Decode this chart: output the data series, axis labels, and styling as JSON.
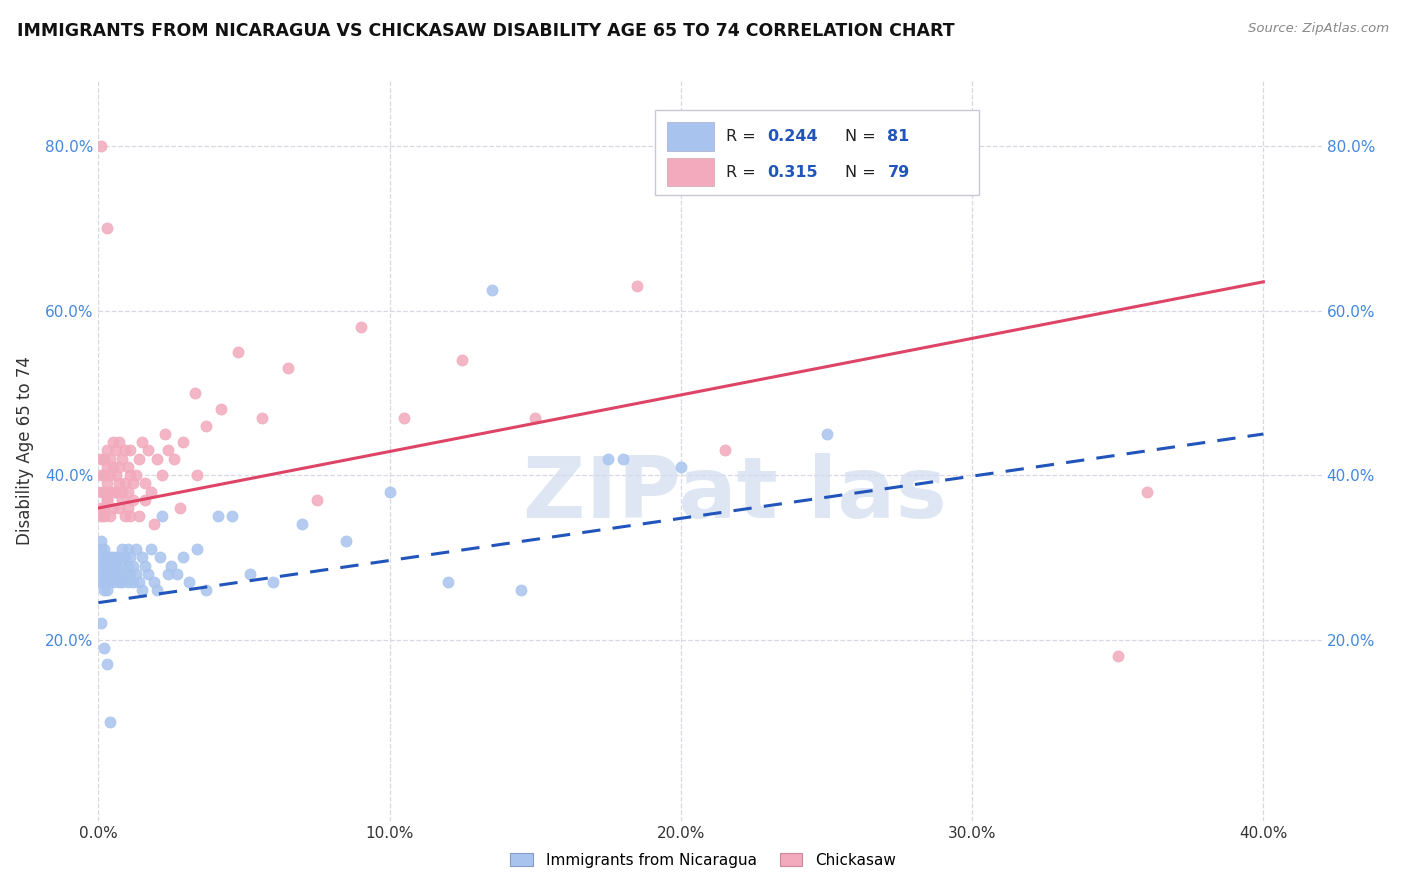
{
  "title": "IMMIGRANTS FROM NICARAGUA VS CHICKASAW DISABILITY AGE 65 TO 74 CORRELATION CHART",
  "source": "Source: ZipAtlas.com",
  "ylabel_label": "Disability Age 65 to 74",
  "xlim": [
    0.0,
    0.42
  ],
  "ylim": [
    -0.02,
    0.88
  ],
  "blue_R": 0.244,
  "blue_N": 81,
  "pink_R": 0.315,
  "pink_N": 79,
  "blue_color": "#a8c4ee",
  "pink_color": "#f2aabc",
  "blue_line_color": "#2255bb",
  "pink_line_color": "#dd4466",
  "legend_label_blue": "Immigrants from Nicaragua",
  "legend_label_pink": "Chickasaw",
  "blue_trend_y0": 0.245,
  "blue_trend_y1": 0.45,
  "pink_trend_y0": 0.36,
  "pink_trend_y1": 0.635,
  "background_color": "#ffffff",
  "grid_color": "#d8d8e4",
  "yticks": [
    0.2,
    0.4,
    0.6,
    0.8
  ],
  "xticks": [
    0.0,
    0.1,
    0.2,
    0.3,
    0.4
  ],
  "watermark_text": "ZIPat las",
  "watermark_color": "#d0dcf0",
  "blue_scatter_x": [
    0.001,
    0.001,
    0.001,
    0.001,
    0.001,
    0.001,
    0.002,
    0.002,
    0.002,
    0.002,
    0.002,
    0.002,
    0.003,
    0.003,
    0.003,
    0.003,
    0.003,
    0.003,
    0.004,
    0.004,
    0.004,
    0.004,
    0.005,
    0.005,
    0.005,
    0.005,
    0.006,
    0.006,
    0.006,
    0.007,
    0.007,
    0.007,
    0.008,
    0.008,
    0.008,
    0.009,
    0.009,
    0.01,
    0.01,
    0.01,
    0.011,
    0.011,
    0.012,
    0.012,
    0.013,
    0.013,
    0.014,
    0.015,
    0.015,
    0.016,
    0.017,
    0.018,
    0.019,
    0.02,
    0.021,
    0.022,
    0.024,
    0.025,
    0.027,
    0.029,
    0.031,
    0.034,
    0.037,
    0.041,
    0.046,
    0.052,
    0.06,
    0.07,
    0.085,
    0.1,
    0.12,
    0.145,
    0.175,
    0.2,
    0.25,
    0.001,
    0.002,
    0.003,
    0.004,
    0.18,
    0.135
  ],
  "blue_scatter_y": [
    0.27,
    0.28,
    0.29,
    0.3,
    0.31,
    0.32,
    0.27,
    0.28,
    0.26,
    0.3,
    0.31,
    0.29,
    0.28,
    0.27,
    0.29,
    0.3,
    0.28,
    0.26,
    0.27,
    0.29,
    0.3,
    0.28,
    0.28,
    0.3,
    0.27,
    0.29,
    0.28,
    0.3,
    0.29,
    0.27,
    0.3,
    0.28,
    0.29,
    0.27,
    0.31,
    0.28,
    0.3,
    0.27,
    0.29,
    0.31,
    0.28,
    0.3,
    0.27,
    0.29,
    0.28,
    0.31,
    0.27,
    0.3,
    0.26,
    0.29,
    0.28,
    0.31,
    0.27,
    0.26,
    0.3,
    0.35,
    0.28,
    0.29,
    0.28,
    0.3,
    0.27,
    0.31,
    0.26,
    0.35,
    0.35,
    0.28,
    0.27,
    0.34,
    0.32,
    0.38,
    0.27,
    0.26,
    0.42,
    0.41,
    0.45,
    0.22,
    0.19,
    0.17,
    0.1,
    0.42,
    0.625
  ],
  "pink_scatter_x": [
    0.001,
    0.001,
    0.001,
    0.001,
    0.002,
    0.002,
    0.002,
    0.002,
    0.003,
    0.003,
    0.003,
    0.003,
    0.004,
    0.004,
    0.004,
    0.005,
    0.005,
    0.005,
    0.006,
    0.006,
    0.006,
    0.007,
    0.007,
    0.007,
    0.008,
    0.008,
    0.009,
    0.009,
    0.01,
    0.01,
    0.011,
    0.011,
    0.012,
    0.013,
    0.014,
    0.015,
    0.016,
    0.017,
    0.018,
    0.02,
    0.022,
    0.024,
    0.026,
    0.029,
    0.033,
    0.037,
    0.042,
    0.048,
    0.056,
    0.065,
    0.075,
    0.09,
    0.105,
    0.125,
    0.15,
    0.001,
    0.002,
    0.003,
    0.004,
    0.005,
    0.006,
    0.007,
    0.008,
    0.009,
    0.01,
    0.011,
    0.012,
    0.014,
    0.016,
    0.019,
    0.023,
    0.028,
    0.034,
    0.001,
    0.003,
    0.35,
    0.185,
    0.215,
    0.36
  ],
  "pink_scatter_y": [
    0.36,
    0.38,
    0.4,
    0.42,
    0.38,
    0.4,
    0.42,
    0.35,
    0.39,
    0.41,
    0.43,
    0.37,
    0.38,
    0.4,
    0.42,
    0.38,
    0.41,
    0.44,
    0.38,
    0.4,
    0.43,
    0.39,
    0.41,
    0.44,
    0.38,
    0.42,
    0.39,
    0.43,
    0.38,
    0.41,
    0.4,
    0.43,
    0.39,
    0.4,
    0.42,
    0.44,
    0.39,
    0.43,
    0.38,
    0.42,
    0.4,
    0.43,
    0.42,
    0.44,
    0.5,
    0.46,
    0.48,
    0.55,
    0.47,
    0.53,
    0.37,
    0.58,
    0.47,
    0.54,
    0.47,
    0.35,
    0.36,
    0.37,
    0.35,
    0.36,
    0.38,
    0.36,
    0.37,
    0.35,
    0.36,
    0.35,
    0.37,
    0.35,
    0.37,
    0.34,
    0.45,
    0.36,
    0.4,
    0.8,
    0.7,
    0.18,
    0.63,
    0.43,
    0.38
  ]
}
